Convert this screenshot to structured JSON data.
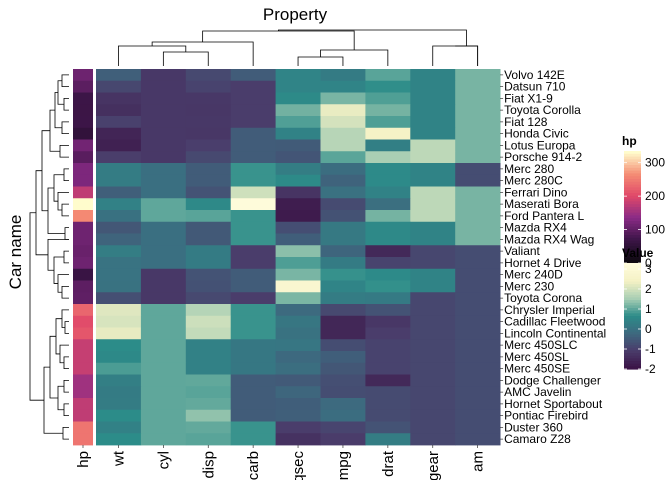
{
  "chart_data": {
    "type": "heatmap",
    "title": "Property",
    "ylabel": "Car name",
    "columns": [
      "wt",
      "cyl",
      "disp",
      "carb",
      "qsec",
      "mpg",
      "drat",
      "gear",
      "am"
    ],
    "annotation_column": "hp",
    "rows": [
      {
        "car": "Volvo 142E",
        "hp": 109,
        "values": [
          -0.45,
          -1.22,
          -0.89,
          -0.5,
          0.43,
          0.22,
          0.97,
          0.42,
          1.19
        ]
      },
      {
        "car": "Datsun 710",
        "hp": 93,
        "values": [
          -0.92,
          -1.22,
          -0.99,
          -1.12,
          0.43,
          0.45,
          0.68,
          0.42,
          1.19
        ]
      },
      {
        "car": "Fiat X1-9",
        "hp": 66,
        "values": [
          -1.31,
          -1.22,
          -1.22,
          -1.12,
          0.59,
          1.2,
          0.9,
          0.42,
          1.19
        ]
      },
      {
        "car": "Toyota Corolla",
        "hp": 65,
        "values": [
          -1.41,
          -1.22,
          -1.25,
          -1.12,
          1.15,
          2.29,
          1.17,
          0.42,
          1.19
        ]
      },
      {
        "car": "Fiat 128",
        "hp": 66,
        "values": [
          -1.04,
          -1.22,
          -1.23,
          -1.12,
          0.91,
          2.04,
          0.9,
          0.42,
          1.19
        ]
      },
      {
        "car": "Honda Civic",
        "hp": 52,
        "values": [
          -1.64,
          -1.22,
          -1.25,
          -0.5,
          0.38,
          1.71,
          2.49,
          0.42,
          1.19
        ]
      },
      {
        "car": "Lotus Europa",
        "hp": 113,
        "values": [
          -1.74,
          -1.22,
          -1.09,
          -0.5,
          -0.53,
          1.71,
          0.32,
          1.78,
          1.19
        ]
      },
      {
        "car": "Porsche 914-2",
        "hp": 91,
        "values": [
          -1.1,
          -1.22,
          -0.89,
          -0.5,
          -0.64,
          0.98,
          1.56,
          1.78,
          1.19
        ]
      },
      {
        "car": "Merc 280",
        "hp": 123,
        "values": [
          0.23,
          -0.1,
          -0.51,
          0.74,
          0.25,
          -0.15,
          0.61,
          0.42,
          -0.81
        ]
      },
      {
        "car": "Merc 280C",
        "hp": 123,
        "values": [
          0.23,
          -0.1,
          -0.51,
          0.74,
          0.59,
          -0.38,
          0.61,
          0.42,
          -0.81
        ]
      },
      {
        "car": "Ferrari Dino",
        "hp": 175,
        "values": [
          -0.45,
          -0.1,
          -0.69,
          1.98,
          -1.31,
          -0.06,
          0.38,
          1.78,
          1.19
        ]
      },
      {
        "car": "Maserati Bora",
        "hp": 335,
        "values": [
          0.36,
          1.01,
          0.57,
          3.21,
          -1.82,
          -0.84,
          -0.11,
          1.78,
          1.19
        ]
      },
      {
        "car": "Ford Pantera L",
        "hp": 264,
        "values": [
          -0.05,
          1.01,
          0.97,
          0.74,
          -1.87,
          -0.71,
          1.17,
          1.78,
          1.19
        ]
      },
      {
        "car": "Mazda RX4",
        "hp": 110,
        "values": [
          -0.61,
          -0.1,
          -0.57,
          0.74,
          -0.78,
          0.15,
          0.57,
          0.42,
          1.19
        ]
      },
      {
        "car": "Mazda RX4 Wag",
        "hp": 110,
        "values": [
          -0.35,
          -0.1,
          -0.57,
          0.74,
          -0.46,
          0.15,
          0.57,
          0.42,
          1.19
        ]
      },
      {
        "car": "Valiant",
        "hp": 105,
        "values": [
          0.25,
          -0.1,
          0.22,
          -1.12,
          1.33,
          -0.33,
          -1.56,
          -0.93,
          -0.81
        ]
      },
      {
        "car": "Hornet 4 Drive",
        "hp": 110,
        "values": [
          -0.0,
          -0.1,
          0.22,
          -1.12,
          0.89,
          0.22,
          -0.97,
          -0.93,
          -0.81
        ]
      },
      {
        "car": "Merc 240D",
        "hp": 62,
        "values": [
          -0.0,
          -1.22,
          -0.68,
          -0.5,
          1.2,
          0.72,
          0.61,
          0.42,
          -0.81
        ]
      },
      {
        "car": "Merc 230",
        "hp": 95,
        "values": [
          -0.02,
          -1.22,
          -0.73,
          -0.5,
          2.83,
          0.45,
          0.7,
          0.42,
          -0.81
        ]
      },
      {
        "car": "Toyota Corona",
        "hp": 97,
        "values": [
          -0.77,
          -1.22,
          -0.89,
          -1.12,
          1.21,
          0.23,
          0.19,
          -0.93,
          -0.81
        ]
      },
      {
        "car": "Chrysler Imperial",
        "hp": 230,
        "values": [
          2.17,
          1.01,
          1.69,
          0.74,
          -0.24,
          -0.89,
          -0.69,
          -0.93,
          -0.81
        ]
      },
      {
        "car": "Cadillac Fleetwood",
        "hp": 205,
        "values": [
          2.08,
          1.01,
          1.95,
          0.74,
          0.07,
          -1.61,
          -1.25,
          -0.93,
          -0.81
        ]
      },
      {
        "car": "Lincoln Continental",
        "hp": 215,
        "values": [
          2.26,
          1.01,
          1.85,
          0.74,
          -0.02,
          -1.61,
          -1.12,
          -0.93,
          -0.81
        ]
      },
      {
        "car": "Merc 450SLC",
        "hp": 180,
        "values": [
          0.64,
          1.01,
          0.36,
          0.11,
          0.08,
          -0.81,
          -0.99,
          -0.93,
          -0.81
        ]
      },
      {
        "car": "Merc 450SL",
        "hp": 180,
        "values": [
          0.58,
          1.01,
          0.36,
          0.11,
          -0.25,
          -0.47,
          -0.99,
          -0.93,
          -0.81
        ]
      },
      {
        "car": "Merc 450SE",
        "hp": 180,
        "values": [
          0.87,
          1.01,
          0.36,
          0.11,
          -0.14,
          -0.61,
          -0.99,
          -0.93,
          -0.81
        ]
      },
      {
        "car": "Dodge Challenger",
        "hp": 150,
        "values": [
          0.31,
          1.01,
          1.03,
          -0.5,
          -0.54,
          -0.76,
          -1.56,
          -0.93,
          -0.81
        ]
      },
      {
        "car": "AMC Javelin",
        "hp": 150,
        "values": [
          0.22,
          1.01,
          0.97,
          -0.5,
          -0.31,
          -0.81,
          -0.84,
          -0.93,
          -0.81
        ]
      },
      {
        "car": "Hornet Sportabout",
        "hp": 175,
        "values": [
          0.23,
          1.01,
          1.04,
          -0.5,
          -0.46,
          -0.23,
          -0.84,
          -0.93,
          -0.81
        ]
      },
      {
        "car": "Pontiac Firebird",
        "hp": 175,
        "values": [
          0.64,
          1.01,
          1.37,
          -0.5,
          -0.45,
          -0.15,
          -0.84,
          -0.93,
          -0.81
        ]
      },
      {
        "car": "Duster 360",
        "hp": 245,
        "values": [
          0.36,
          1.01,
          1.04,
          0.74,
          -1.12,
          -0.96,
          -0.69,
          -0.93,
          -0.81
        ]
      },
      {
        "car": "Camaro Z28",
        "hp": 245,
        "values": [
          0.64,
          1.01,
          0.97,
          0.74,
          -1.36,
          -1.13,
          0.25,
          -0.93,
          -0.81
        ]
      }
    ],
    "legends": [
      {
        "title": "hp",
        "ticks": [
          "300",
          "200",
          "100",
          "0"
        ],
        "range": [
          0,
          335
        ]
      },
      {
        "title": "Value",
        "ticks": [
          "3",
          "2",
          "1",
          "0",
          "-1",
          "-2"
        ],
        "range": [
          -2.0,
          3.3
        ]
      }
    ],
    "colors": {
      "value_scale": [
        "#3c1548",
        "#4a3d6b",
        "#3d6a7f",
        "#2c8c89",
        "#a8ceb4",
        "#f4f1c4",
        "#fffcdd"
      ],
      "hp_scale": [
        "#0e0910",
        "#3d1548",
        "#8a2b86",
        "#e04869",
        "#f58d74",
        "#fffccc"
      ]
    }
  }
}
